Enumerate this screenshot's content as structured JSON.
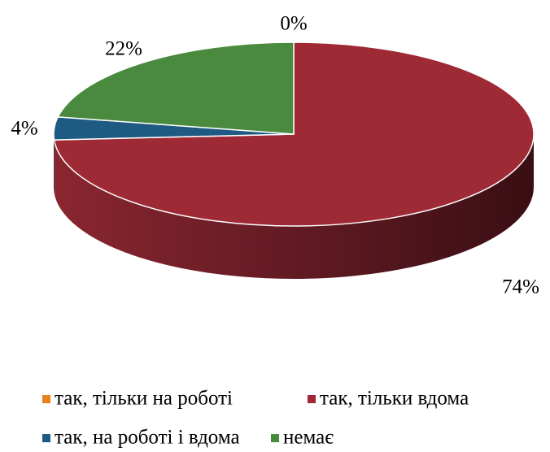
{
  "chart_data": {
    "type": "pie",
    "categories": [
      "так, тільки на роботі",
      "так, тільки вдома",
      "так, на роботі і вдома",
      "немає"
    ],
    "values": [
      0,
      74,
      4,
      22
    ],
    "value_labels": [
      "0%",
      "74%",
      "4%",
      "22%"
    ],
    "colors": [
      "#e8821e",
      "#9e2a35",
      "#1f5a82",
      "#4a8a3e"
    ],
    "legend": "bottom"
  }
}
